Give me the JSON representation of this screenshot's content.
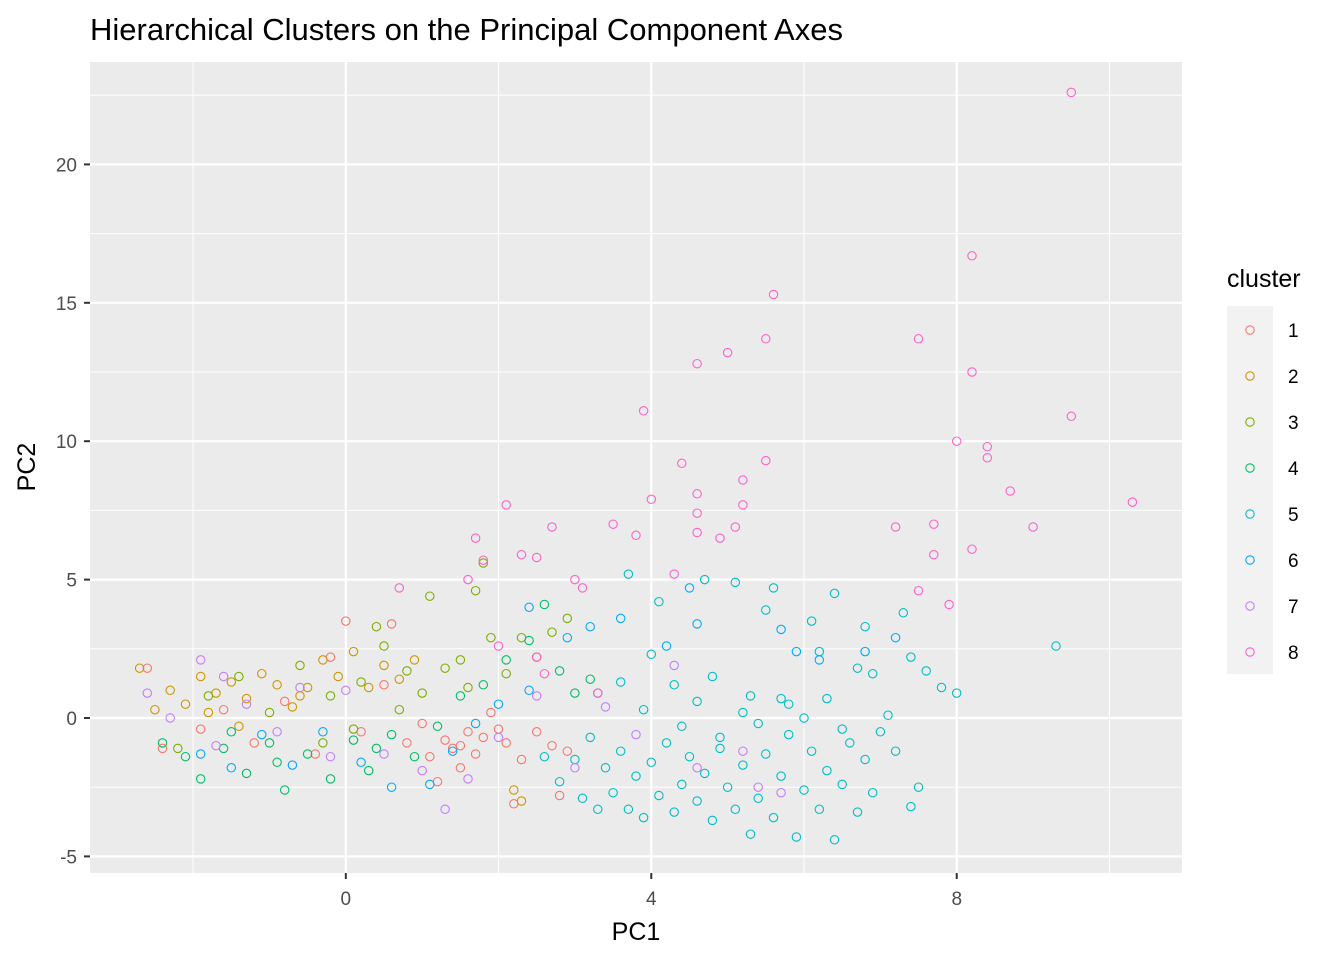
{
  "chart_data": {
    "type": "scatter",
    "title": "Hierarchical Clusters on the Principal Component Axes",
    "xlabel": "PC1",
    "ylabel": "PC2",
    "xlim": [
      -3.35,
      10.95
    ],
    "ylim": [
      -5.6,
      23.7
    ],
    "x_ticks": [
      0,
      4,
      8
    ],
    "x_minor_ticks": [
      -2,
      2,
      6,
      10
    ],
    "y_ticks": [
      -5,
      0,
      5,
      10,
      15,
      20
    ],
    "y_minor_ticks": [
      -2.5,
      2.5,
      7.5,
      12.5,
      17.5,
      22.5
    ],
    "grid": true,
    "legend": {
      "title": "cluster",
      "position": "right",
      "entries": [
        "1",
        "2",
        "3",
        "4",
        "5",
        "6",
        "7",
        "8"
      ]
    },
    "colors": {
      "1": "#F8766D",
      "2": "#CD9600",
      "3": "#7CAE00",
      "4": "#00BE67",
      "5": "#00BFC4",
      "6": "#00A9FF",
      "7": "#C77CFF",
      "8": "#FF61CC"
    },
    "series": [
      {
        "name": "1",
        "points": [
          [
            -2.6,
            1.8
          ],
          [
            -2.4,
            -1.1
          ],
          [
            -1.9,
            -0.4
          ],
          [
            -1.6,
            0.3
          ],
          [
            -1.2,
            -0.9
          ],
          [
            -0.8,
            0.6
          ],
          [
            -0.4,
            -1.3
          ],
          [
            0.0,
            3.5
          ],
          [
            0.2,
            -0.5
          ],
          [
            0.5,
            1.2
          ],
          [
            0.8,
            -0.9
          ],
          [
            1.0,
            -0.2
          ],
          [
            1.1,
            -1.4
          ],
          [
            1.3,
            -0.8
          ],
          [
            1.4,
            -1.1
          ],
          [
            1.5,
            -1.0
          ],
          [
            1.6,
            -0.5
          ],
          [
            1.7,
            -1.3
          ],
          [
            1.8,
            -0.7
          ],
          [
            1.9,
            0.2
          ],
          [
            2.1,
            -0.9
          ],
          [
            2.3,
            -1.5
          ],
          [
            2.5,
            -0.5
          ],
          [
            2.7,
            -1.0
          ],
          [
            2.9,
            -1.2
          ],
          [
            2.2,
            -3.1
          ],
          [
            2.8,
            -2.8
          ],
          [
            0.6,
            3.4
          ],
          [
            -0.2,
            2.2
          ],
          [
            1.2,
            -2.3
          ],
          [
            1.5,
            -1.8
          ],
          [
            2.0,
            -0.4
          ]
        ]
      },
      {
        "name": "2",
        "points": [
          [
            -2.7,
            1.8
          ],
          [
            -2.5,
            0.3
          ],
          [
            -2.3,
            1.0
          ],
          [
            -2.1,
            0.5
          ],
          [
            -1.9,
            1.5
          ],
          [
            -1.7,
            0.9
          ],
          [
            -1.5,
            1.3
          ],
          [
            -1.3,
            0.7
          ],
          [
            -1.1,
            1.6
          ],
          [
            -0.9,
            1.2
          ],
          [
            -0.7,
            0.4
          ],
          [
            -0.5,
            1.1
          ],
          [
            -0.3,
            2.1
          ],
          [
            -0.1,
            1.5
          ],
          [
            0.1,
            2.4
          ],
          [
            0.3,
            1.1
          ],
          [
            0.5,
            1.9
          ],
          [
            0.7,
            1.4
          ],
          [
            0.9,
            2.1
          ],
          [
            2.2,
            -2.6
          ],
          [
            2.3,
            -3.0
          ],
          [
            -1.8,
            0.2
          ],
          [
            -1.4,
            -0.3
          ],
          [
            -0.6,
            0.8
          ]
        ]
      },
      {
        "name": "3",
        "points": [
          [
            -2.2,
            -1.1
          ],
          [
            -1.8,
            0.8
          ],
          [
            -1.4,
            1.5
          ],
          [
            -1.0,
            0.2
          ],
          [
            -0.6,
            1.9
          ],
          [
            -0.2,
            0.8
          ],
          [
            0.2,
            1.3
          ],
          [
            0.5,
            2.6
          ],
          [
            0.8,
            1.7
          ],
          [
            1.0,
            0.9
          ],
          [
            1.1,
            4.4
          ],
          [
            1.3,
            1.8
          ],
          [
            1.5,
            2.1
          ],
          [
            1.6,
            1.1
          ],
          [
            1.7,
            4.6
          ],
          [
            1.8,
            5.6
          ],
          [
            1.9,
            2.9
          ],
          [
            2.1,
            1.6
          ],
          [
            2.3,
            2.9
          ],
          [
            2.5,
            2.2
          ],
          [
            2.7,
            3.1
          ],
          [
            2.9,
            3.6
          ],
          [
            0.4,
            3.3
          ],
          [
            -0.3,
            -0.9
          ],
          [
            0.1,
            -0.4
          ],
          [
            0.7,
            0.3
          ]
        ]
      },
      {
        "name": "4",
        "points": [
          [
            -2.4,
            -0.9
          ],
          [
            -2.1,
            -1.4
          ],
          [
            -1.9,
            -2.2
          ],
          [
            -1.6,
            -1.1
          ],
          [
            -1.3,
            -2.0
          ],
          [
            -1.0,
            -0.9
          ],
          [
            -0.8,
            -2.6
          ],
          [
            -0.5,
            -1.3
          ],
          [
            -0.2,
            -2.2
          ],
          [
            0.1,
            -0.8
          ],
          [
            0.3,
            -1.9
          ],
          [
            0.6,
            -0.6
          ],
          [
            0.9,
            -1.4
          ],
          [
            1.2,
            -0.3
          ],
          [
            1.5,
            0.8
          ],
          [
            1.8,
            1.2
          ],
          [
            2.1,
            2.1
          ],
          [
            2.4,
            2.8
          ],
          [
            2.6,
            4.1
          ],
          [
            2.8,
            1.7
          ],
          [
            3.0,
            0.9
          ],
          [
            3.2,
            1.4
          ],
          [
            -1.5,
            -0.5
          ],
          [
            -0.9,
            -1.6
          ],
          [
            0.4,
            -1.1
          ]
        ]
      },
      {
        "name": "5",
        "points": [
          [
            2.6,
            -1.4
          ],
          [
            2.8,
            -2.3
          ],
          [
            3.0,
            -1.5
          ],
          [
            3.1,
            -2.9
          ],
          [
            3.2,
            -0.7
          ],
          [
            3.3,
            -3.3
          ],
          [
            3.4,
            -1.8
          ],
          [
            3.5,
            -2.7
          ],
          [
            3.6,
            -1.2
          ],
          [
            3.7,
            -3.3
          ],
          [
            3.8,
            -2.1
          ],
          [
            3.9,
            -3.6
          ],
          [
            4.0,
            -1.6
          ],
          [
            4.1,
            -2.8
          ],
          [
            4.2,
            -0.9
          ],
          [
            4.3,
            -3.4
          ],
          [
            4.4,
            -2.4
          ],
          [
            4.5,
            -1.4
          ],
          [
            4.6,
            -3.0
          ],
          [
            4.7,
            -2.0
          ],
          [
            4.8,
            -3.7
          ],
          [
            4.9,
            -1.1
          ],
          [
            5.0,
            -2.5
          ],
          [
            5.1,
            -3.3
          ],
          [
            5.2,
            -1.7
          ],
          [
            5.3,
            -4.2
          ],
          [
            5.4,
            -2.9
          ],
          [
            5.5,
            -1.3
          ],
          [
            5.6,
            -3.6
          ],
          [
            5.7,
            -2.1
          ],
          [
            5.8,
            -0.6
          ],
          [
            5.9,
            -4.3
          ],
          [
            6.0,
            -2.6
          ],
          [
            6.1,
            -1.2
          ],
          [
            6.2,
            -3.3
          ],
          [
            6.3,
            -1.9
          ],
          [
            6.4,
            -4.4
          ],
          [
            6.5,
            -2.4
          ],
          [
            6.6,
            -0.9
          ],
          [
            6.7,
            -3.4
          ],
          [
            6.8,
            -1.5
          ],
          [
            6.9,
            -2.7
          ],
          [
            7.0,
            -0.5
          ],
          [
            7.2,
            -1.2
          ],
          [
            7.4,
            -3.2
          ],
          [
            7.5,
            -2.5
          ],
          [
            3.7,
            5.2
          ],
          [
            4.1,
            4.2
          ],
          [
            4.7,
            5.0
          ],
          [
            5.1,
            4.9
          ],
          [
            5.6,
            4.7
          ],
          [
            5.5,
            3.9
          ],
          [
            6.1,
            3.5
          ],
          [
            6.4,
            4.5
          ],
          [
            6.8,
            3.3
          ],
          [
            7.3,
            3.8
          ],
          [
            7.6,
            1.7
          ],
          [
            7.8,
            1.1
          ],
          [
            8.0,
            0.9
          ],
          [
            9.3,
            2.6
          ],
          [
            3.9,
            0.3
          ],
          [
            4.6,
            0.6
          ],
          [
            5.2,
            0.2
          ],
          [
            5.8,
            0.5
          ],
          [
            6.3,
            0.7
          ],
          [
            6.9,
            1.6
          ],
          [
            7.4,
            2.2
          ],
          [
            4.4,
            -0.3
          ],
          [
            4.9,
            -0.7
          ],
          [
            5.4,
            -0.2
          ],
          [
            6.0,
            0.0
          ],
          [
            6.5,
            -0.4
          ],
          [
            3.3,
            0.9
          ],
          [
            3.6,
            1.3
          ],
          [
            4.0,
            2.3
          ],
          [
            4.3,
            1.2
          ],
          [
            4.8,
            1.5
          ],
          [
            5.3,
            0.8
          ],
          [
            5.7,
            0.7
          ],
          [
            6.2,
            2.4
          ],
          [
            6.7,
            1.8
          ],
          [
            7.1,
            0.1
          ]
        ]
      },
      {
        "name": "6",
        "points": [
          [
            2.4,
            4.0
          ],
          [
            2.9,
            2.9
          ],
          [
            3.2,
            3.3
          ],
          [
            3.6,
            3.6
          ],
          [
            4.2,
            2.6
          ],
          [
            4.6,
            3.4
          ],
          [
            4.5,
            4.7
          ],
          [
            5.7,
            3.2
          ],
          [
            5.9,
            2.4
          ],
          [
            6.2,
            2.1
          ],
          [
            6.8,
            2.4
          ],
          [
            7.2,
            2.9
          ],
          [
            -1.9,
            -1.3
          ],
          [
            -1.5,
            -1.8
          ],
          [
            -1.1,
            -0.6
          ],
          [
            -0.7,
            -1.7
          ],
          [
            -0.3,
            -0.5
          ],
          [
            0.2,
            -1.6
          ],
          [
            0.6,
            -2.5
          ],
          [
            1.1,
            -2.4
          ],
          [
            1.4,
            -1.2
          ],
          [
            1.7,
            -0.2
          ],
          [
            2.0,
            0.5
          ],
          [
            2.4,
            1.0
          ]
        ]
      },
      {
        "name": "7",
        "points": [
          [
            -2.6,
            0.9
          ],
          [
            -2.3,
            0.0
          ],
          [
            -1.9,
            2.1
          ],
          [
            -1.6,
            1.5
          ],
          [
            -1.3,
            0.5
          ],
          [
            -0.9,
            -0.5
          ],
          [
            -0.6,
            1.1
          ],
          [
            0.0,
            1.0
          ],
          [
            0.5,
            -1.3
          ],
          [
            1.0,
            -1.9
          ],
          [
            1.3,
            -3.3
          ],
          [
            1.6,
            -2.2
          ],
          [
            2.0,
            -0.7
          ],
          [
            2.5,
            0.8
          ],
          [
            3.0,
            -1.8
          ],
          [
            3.4,
            0.4
          ],
          [
            3.8,
            -0.6
          ],
          [
            4.6,
            -1.8
          ],
          [
            5.2,
            -1.2
          ],
          [
            5.4,
            -2.5
          ],
          [
            5.7,
            -2.7
          ],
          [
            4.3,
            1.9
          ],
          [
            -1.7,
            -1.0
          ],
          [
            -0.2,
            -1.4
          ]
        ]
      },
      {
        "name": "8",
        "points": [
          [
            9.5,
            22.6
          ],
          [
            8.2,
            16.7
          ],
          [
            5.6,
            15.3
          ],
          [
            7.5,
            13.7
          ],
          [
            5.5,
            13.7
          ],
          [
            5.0,
            13.2
          ],
          [
            8.2,
            12.5
          ],
          [
            4.6,
            12.8
          ],
          [
            3.9,
            11.1
          ],
          [
            9.5,
            10.9
          ],
          [
            8.0,
            10.0
          ],
          [
            8.4,
            9.8
          ],
          [
            8.4,
            9.4
          ],
          [
            5.5,
            9.3
          ],
          [
            4.4,
            9.2
          ],
          [
            5.2,
            8.6
          ],
          [
            8.7,
            8.2
          ],
          [
            4.6,
            8.1
          ],
          [
            4.0,
            7.9
          ],
          [
            10.3,
            7.8
          ],
          [
            5.2,
            7.7
          ],
          [
            2.1,
            7.7
          ],
          [
            4.6,
            7.4
          ],
          [
            9.0,
            6.9
          ],
          [
            7.2,
            6.9
          ],
          [
            7.7,
            7.0
          ],
          [
            3.5,
            7.0
          ],
          [
            5.1,
            6.9
          ],
          [
            2.7,
            6.9
          ],
          [
            4.6,
            6.7
          ],
          [
            4.9,
            6.5
          ],
          [
            3.8,
            6.6
          ],
          [
            1.7,
            6.5
          ],
          [
            8.2,
            6.1
          ],
          [
            2.3,
            5.9
          ],
          [
            2.5,
            5.8
          ],
          [
            7.7,
            5.9
          ],
          [
            1.8,
            5.7
          ],
          [
            3.0,
            5.0
          ],
          [
            1.6,
            5.0
          ],
          [
            4.3,
            5.2
          ],
          [
            7.5,
            4.6
          ],
          [
            7.9,
            4.1
          ],
          [
            3.1,
            4.7
          ],
          [
            0.7,
            4.7
          ],
          [
            2.0,
            2.6
          ],
          [
            2.5,
            2.2
          ],
          [
            2.6,
            1.6
          ],
          [
            3.3,
            0.9
          ]
        ]
      }
    ]
  }
}
